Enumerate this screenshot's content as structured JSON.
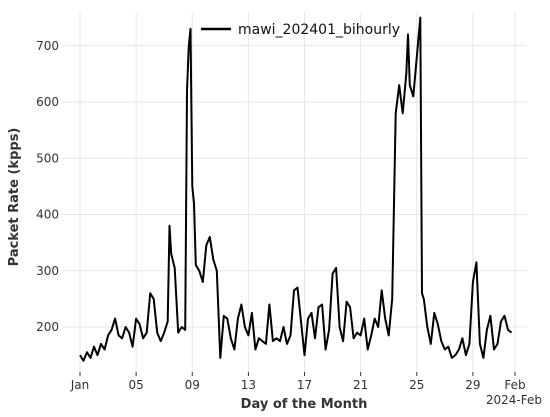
{
  "chart_data": {
    "type": "line",
    "xlabel": "Day of the Month",
    "ylabel": "Packet Rate (kpps)",
    "x_offset_label": "2024-Feb",
    "xlim": [
      "2024-01-01",
      "2024-02-01"
    ],
    "ylim": [
      120,
      760
    ],
    "yticks": [
      200,
      300,
      400,
      500,
      600,
      700
    ],
    "xticks": [
      {
        "date": "2024-01-01",
        "label": "Jan"
      },
      {
        "date": "2024-01-05",
        "label": "05"
      },
      {
        "date": "2024-01-09",
        "label": "09"
      },
      {
        "date": "2024-01-13",
        "label": "13"
      },
      {
        "date": "2024-01-17",
        "label": "17"
      },
      {
        "date": "2024-01-21",
        "label": "21"
      },
      {
        "date": "2024-01-25",
        "label": "25"
      },
      {
        "date": "2024-01-29",
        "label": "29"
      },
      {
        "date": "2024-02-01",
        "label": "Feb"
      }
    ],
    "grid": true,
    "legend_position": "top-center",
    "series": [
      {
        "name": "mawi_202401_bihourly",
        "color": "#000000",
        "points": [
          [
            "2024-01-01 00:00",
            150
          ],
          [
            "2024-01-01 06:00",
            140
          ],
          [
            "2024-01-01 12:00",
            155
          ],
          [
            "2024-01-01 18:00",
            145
          ],
          [
            "2024-01-02 00:00",
            165
          ],
          [
            "2024-01-02 06:00",
            150
          ],
          [
            "2024-01-02 12:00",
            170
          ],
          [
            "2024-01-02 18:00",
            160
          ],
          [
            "2024-01-03 00:00",
            185
          ],
          [
            "2024-01-03 06:00",
            195
          ],
          [
            "2024-01-03 12:00",
            215
          ],
          [
            "2024-01-03 18:00",
            185
          ],
          [
            "2024-01-04 00:00",
            180
          ],
          [
            "2024-01-04 06:00",
            200
          ],
          [
            "2024-01-04 12:00",
            190
          ],
          [
            "2024-01-04 18:00",
            165
          ],
          [
            "2024-01-05 00:00",
            215
          ],
          [
            "2024-01-05 06:00",
            205
          ],
          [
            "2024-01-05 12:00",
            180
          ],
          [
            "2024-01-05 18:00",
            190
          ],
          [
            "2024-01-06 00:00",
            260
          ],
          [
            "2024-01-06 06:00",
            250
          ],
          [
            "2024-01-06 12:00",
            190
          ],
          [
            "2024-01-06 18:00",
            175
          ],
          [
            "2024-01-07 00:00",
            190
          ],
          [
            "2024-01-07 06:00",
            210
          ],
          [
            "2024-01-07 09:00",
            380
          ],
          [
            "2024-01-07 12:00",
            330
          ],
          [
            "2024-01-07 18:00",
            305
          ],
          [
            "2024-01-08 00:00",
            190
          ],
          [
            "2024-01-08 06:00",
            200
          ],
          [
            "2024-01-08 12:00",
            195
          ],
          [
            "2024-01-08 15:00",
            620
          ],
          [
            "2024-01-08 18:00",
            700
          ],
          [
            "2024-01-08 21:00",
            730
          ],
          [
            "2024-01-09 00:00",
            450
          ],
          [
            "2024-01-09 03:00",
            420
          ],
          [
            "2024-01-09 06:00",
            310
          ],
          [
            "2024-01-09 12:00",
            300
          ],
          [
            "2024-01-09 18:00",
            280
          ],
          [
            "2024-01-10 00:00",
            345
          ],
          [
            "2024-01-10 06:00",
            360
          ],
          [
            "2024-01-10 12:00",
            320
          ],
          [
            "2024-01-10 18:00",
            300
          ],
          [
            "2024-01-11 00:00",
            145
          ],
          [
            "2024-01-11 06:00",
            220
          ],
          [
            "2024-01-11 12:00",
            215
          ],
          [
            "2024-01-11 18:00",
            180
          ],
          [
            "2024-01-12 00:00",
            160
          ],
          [
            "2024-01-12 06:00",
            215
          ],
          [
            "2024-01-12 12:00",
            240
          ],
          [
            "2024-01-12 18:00",
            200
          ],
          [
            "2024-01-13 00:00",
            185
          ],
          [
            "2024-01-13 06:00",
            225
          ],
          [
            "2024-01-13 12:00",
            160
          ],
          [
            "2024-01-13 18:00",
            180
          ],
          [
            "2024-01-14 00:00",
            175
          ],
          [
            "2024-01-14 06:00",
            170
          ],
          [
            "2024-01-14 12:00",
            240
          ],
          [
            "2024-01-14 18:00",
            175
          ],
          [
            "2024-01-15 00:00",
            180
          ],
          [
            "2024-01-15 06:00",
            175
          ],
          [
            "2024-01-15 12:00",
            200
          ],
          [
            "2024-01-15 18:00",
            170
          ],
          [
            "2024-01-16 00:00",
            185
          ],
          [
            "2024-01-16 06:00",
            265
          ],
          [
            "2024-01-16 12:00",
            270
          ],
          [
            "2024-01-16 18:00",
            210
          ],
          [
            "2024-01-17 00:00",
            150
          ],
          [
            "2024-01-17 06:00",
            215
          ],
          [
            "2024-01-17 12:00",
            225
          ],
          [
            "2024-01-17 18:00",
            180
          ],
          [
            "2024-01-18 00:00",
            235
          ],
          [
            "2024-01-18 06:00",
            240
          ],
          [
            "2024-01-18 12:00",
            160
          ],
          [
            "2024-01-18 18:00",
            195
          ],
          [
            "2024-01-19 00:00",
            295
          ],
          [
            "2024-01-19 06:00",
            305
          ],
          [
            "2024-01-19 12:00",
            200
          ],
          [
            "2024-01-19 18:00",
            175
          ],
          [
            "2024-01-20 00:00",
            245
          ],
          [
            "2024-01-20 06:00",
            235
          ],
          [
            "2024-01-20 12:00",
            180
          ],
          [
            "2024-01-20 18:00",
            190
          ],
          [
            "2024-01-21 00:00",
            185
          ],
          [
            "2024-01-21 06:00",
            215
          ],
          [
            "2024-01-21 12:00",
            160
          ],
          [
            "2024-01-21 18:00",
            185
          ],
          [
            "2024-01-22 00:00",
            215
          ],
          [
            "2024-01-22 06:00",
            200
          ],
          [
            "2024-01-22 12:00",
            265
          ],
          [
            "2024-01-22 18:00",
            215
          ],
          [
            "2024-01-23 00:00",
            185
          ],
          [
            "2024-01-23 06:00",
            250
          ],
          [
            "2024-01-23 12:00",
            580
          ],
          [
            "2024-01-23 18:00",
            630
          ],
          [
            "2024-01-24 00:00",
            580
          ],
          [
            "2024-01-24 06:00",
            650
          ],
          [
            "2024-01-24 09:00",
            720
          ],
          [
            "2024-01-24 12:00",
            630
          ],
          [
            "2024-01-24 18:00",
            610
          ],
          [
            "2024-01-25 00:00",
            680
          ],
          [
            "2024-01-25 06:00",
            750
          ],
          [
            "2024-01-25 09:00",
            260
          ],
          [
            "2024-01-25 12:00",
            250
          ],
          [
            "2024-01-25 18:00",
            200
          ],
          [
            "2024-01-26 00:00",
            170
          ],
          [
            "2024-01-26 06:00",
            225
          ],
          [
            "2024-01-26 12:00",
            205
          ],
          [
            "2024-01-26 18:00",
            175
          ],
          [
            "2024-01-27 00:00",
            160
          ],
          [
            "2024-01-27 06:00",
            165
          ],
          [
            "2024-01-27 12:00",
            145
          ],
          [
            "2024-01-27 18:00",
            150
          ],
          [
            "2024-01-28 00:00",
            160
          ],
          [
            "2024-01-28 06:00",
            180
          ],
          [
            "2024-01-28 12:00",
            150
          ],
          [
            "2024-01-28 18:00",
            170
          ],
          [
            "2024-01-29 00:00",
            280
          ],
          [
            "2024-01-29 06:00",
            315
          ],
          [
            "2024-01-29 12:00",
            170
          ],
          [
            "2024-01-29 18:00",
            145
          ],
          [
            "2024-01-30 00:00",
            195
          ],
          [
            "2024-01-30 06:00",
            220
          ],
          [
            "2024-01-30 12:00",
            160
          ],
          [
            "2024-01-30 18:00",
            170
          ],
          [
            "2024-01-31 00:00",
            210
          ],
          [
            "2024-01-31 06:00",
            220
          ],
          [
            "2024-01-31 12:00",
            195
          ],
          [
            "2024-01-31 18:00",
            190
          ]
        ]
      }
    ]
  }
}
